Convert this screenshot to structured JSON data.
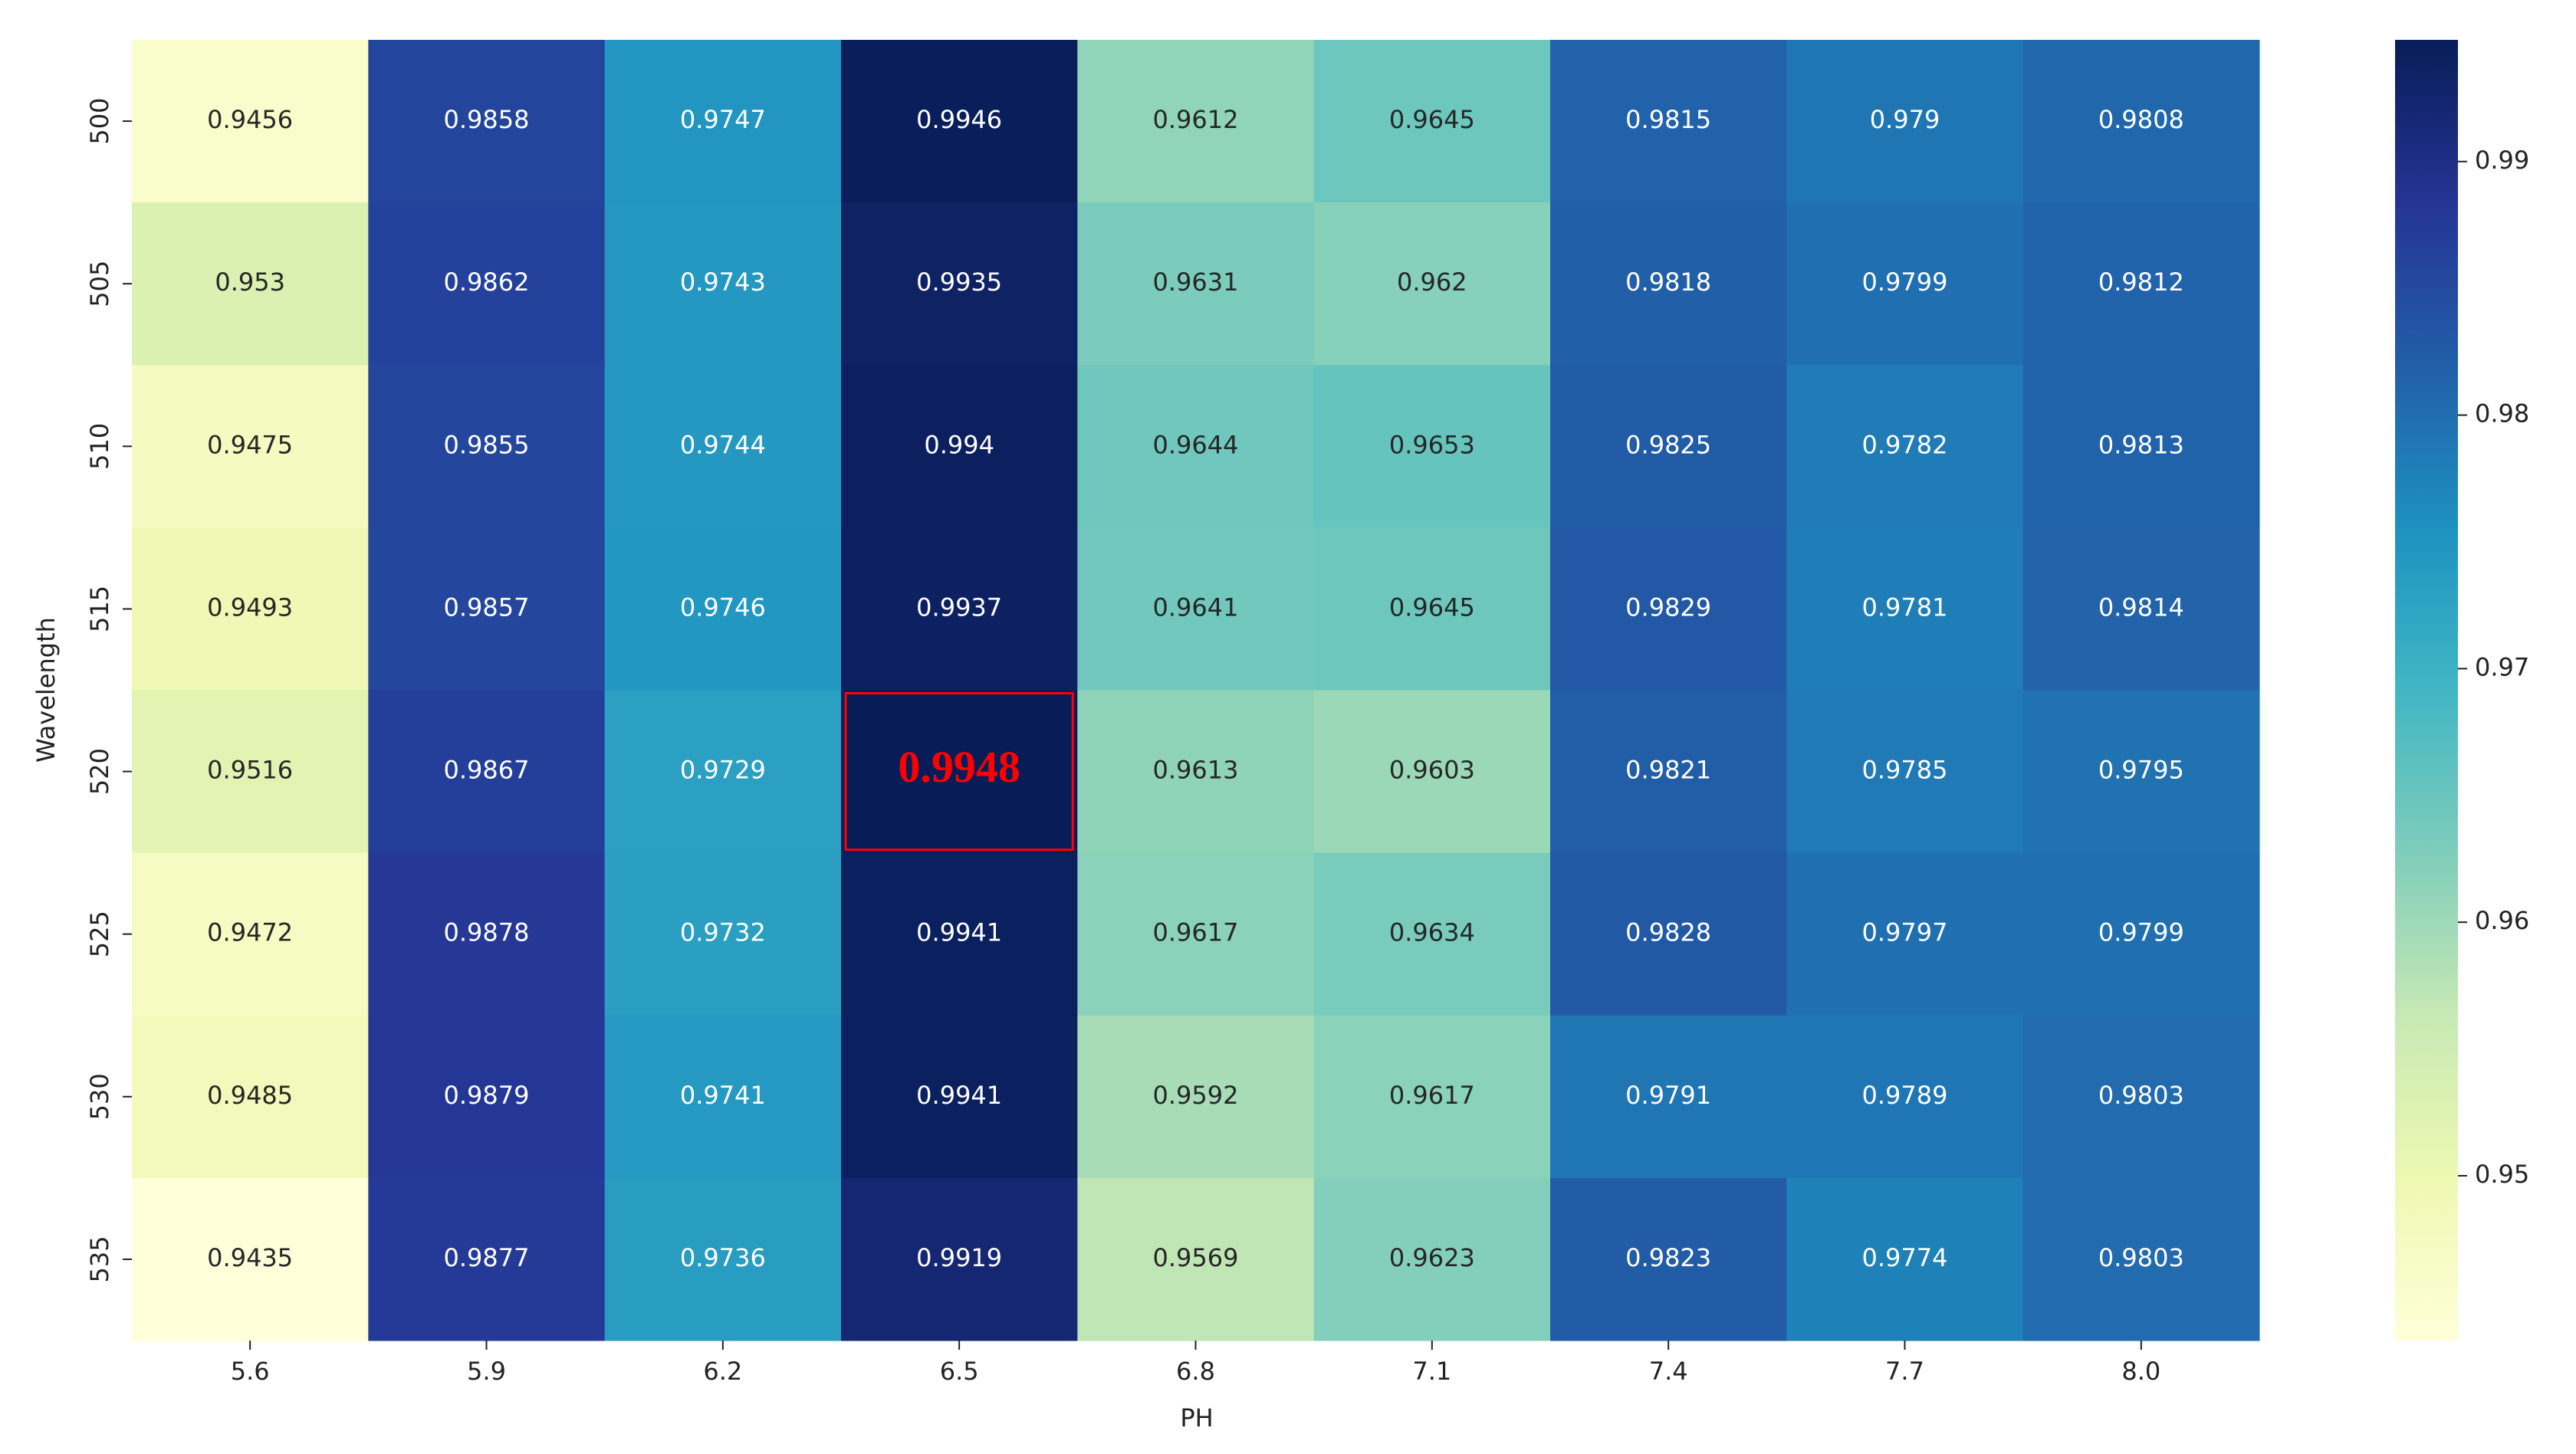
{
  "chart_data": {
    "type": "heatmap",
    "x_label": "PH",
    "y_label": "Wavelength",
    "x_categories": [
      "5.6",
      "5.9",
      "6.2",
      "6.5",
      "6.8",
      "7.1",
      "7.4",
      "7.7",
      "8.0"
    ],
    "y_categories": [
      "500",
      "505",
      "510",
      "515",
      "520",
      "525",
      "530",
      "535"
    ],
    "values": [
      [
        0.9456,
        0.9858,
        0.9747,
        0.9946,
        0.9612,
        0.9645,
        0.9815,
        0.979,
        0.9808
      ],
      [
        0.953,
        0.9862,
        0.9743,
        0.9935,
        0.9631,
        0.962,
        0.9818,
        0.9799,
        0.9812
      ],
      [
        0.9475,
        0.9855,
        0.9744,
        0.994,
        0.9644,
        0.9653,
        0.9825,
        0.9782,
        0.9813
      ],
      [
        0.9493,
        0.9857,
        0.9746,
        0.9937,
        0.9641,
        0.9645,
        0.9829,
        0.9781,
        0.9814
      ],
      [
        0.9516,
        0.9867,
        0.9729,
        0.9948,
        0.9613,
        0.9603,
        0.9821,
        0.9785,
        0.9795
      ],
      [
        0.9472,
        0.9878,
        0.9732,
        0.9941,
        0.9617,
        0.9634,
        0.9828,
        0.9797,
        0.9799
      ],
      [
        0.9485,
        0.9879,
        0.9741,
        0.9941,
        0.9592,
        0.9617,
        0.9791,
        0.9789,
        0.9803
      ],
      [
        0.9435,
        0.9877,
        0.9736,
        0.9919,
        0.9569,
        0.9623,
        0.9823,
        0.9774,
        0.9803
      ]
    ],
    "colormap": [
      "#ffffd9",
      "#edf8b1",
      "#c7e9b4",
      "#7fcdbb",
      "#41b6c4",
      "#1d91c0",
      "#225ea8",
      "#253494",
      "#081d58"
    ],
    "clim": [
      0.9435,
      0.9948
    ],
    "cticks": [
      0.95,
      0.96,
      0.97,
      0.98,
      0.99
    ],
    "highlight_cell": {
      "row": 4,
      "col": 3,
      "color": "#ff0000"
    }
  }
}
